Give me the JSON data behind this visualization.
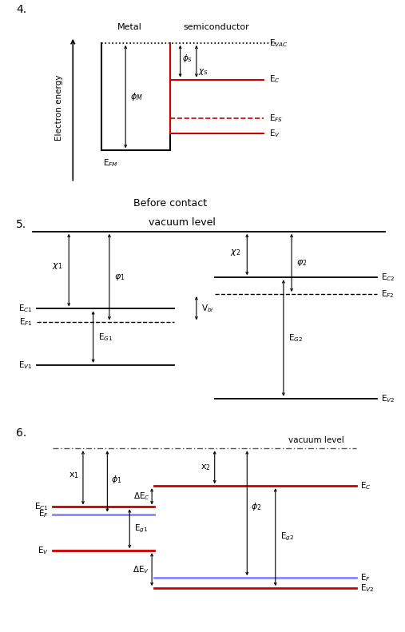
{
  "bg": "#ffffff",
  "black": "#000000",
  "red": "#cc0000",
  "blue": "#8888ff",
  "purple": "#9966cc",
  "fig4": {
    "title_num": "4.",
    "label_metal": "Metal",
    "label_semi": "semiconductor",
    "label_evac": "E$_{VAC}$",
    "label_ec": "E$_C$",
    "label_efs": "E$_{FS}$",
    "label_ev": "E$_V$",
    "label_efm": "E$_{FM}$",
    "label_phiM": "$\\phi_M$",
    "label_phiS": "$\\phi_S$",
    "label_chiS": "$\\chi_S$",
    "label_before": "Before contact",
    "label_yaxis": "Electron energy"
  },
  "fig5": {
    "title_num": "5.",
    "label_vac": "vacuum level",
    "label_chi1": "$\\chi_1$",
    "label_phi1": "$\\varphi_1$",
    "label_chi2": "$\\chi_2$",
    "label_phi2": "$\\varphi_2$",
    "label_Ec1": "E$_{C1}$",
    "label_EF1": "E$_{F1}$",
    "label_Ev1": "E$_{V1}$",
    "label_EG1": "E$_{G1}$",
    "label_Ec2": "E$_{C2}$",
    "label_EF2": "E$_{F2}$",
    "label_Ev2": "E$_{V2}$",
    "label_EG2": "E$_{G2}$",
    "label_Vbi": "V$_{bi}$"
  },
  "fig6": {
    "title_num": "6.",
    "label_vac": "vacuum level",
    "label_x1": "x$_1$",
    "label_phi1": "$\\phi_1$",
    "label_x2": "x$_2$",
    "label_phi2": "$\\phi_2$",
    "label_Ec1": "E$_{C1}$",
    "label_EF": "E$_F$",
    "label_Ev": "E$_V$",
    "label_Ec": "E$_C$",
    "label_EF2": "E$_F$",
    "label_Ev2": "E$_{V2}$",
    "label_dEc": "$\\Delta$E$_C$",
    "label_dEv": "$\\Delta$E$_V$",
    "label_Eg1": "E$_{g1}$",
    "label_Eg2": "E$_{g2}$"
  }
}
